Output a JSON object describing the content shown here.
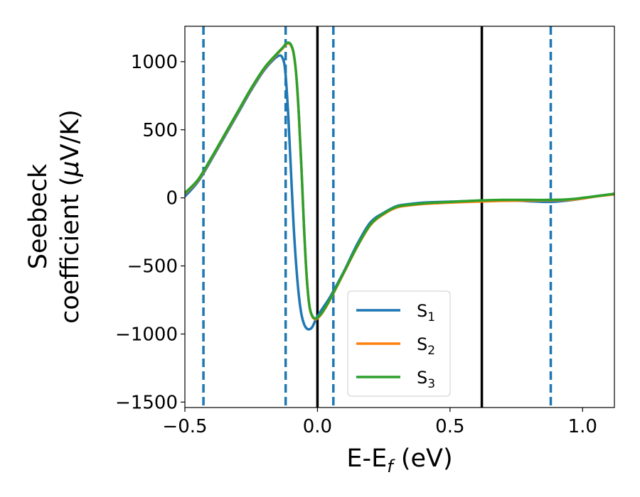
{
  "chart_data": {
    "type": "line",
    "xlabel": {
      "main": "E-E",
      "sub": "f",
      "unit": " (eV)"
    },
    "ylabel": {
      "line1": "Seebeck",
      "line2": "coefficient  (",
      "mu": "μ",
      "unit": "V/K)"
    },
    "xlim": [
      -0.5,
      1.12
    ],
    "ylim": [
      -1540,
      1260
    ],
    "xticks": [
      -0.5,
      0.0,
      0.5,
      1.0
    ],
    "xtick_labels": [
      "−0.5",
      "0.0",
      "0.5",
      "1.0"
    ],
    "yticks": [
      -1500,
      -1000,
      -500,
      0,
      500,
      1000
    ],
    "ytick_labels": [
      "−1500",
      "−1000",
      "−500",
      "0",
      "500",
      "1000"
    ],
    "grid": false,
    "legend_position": "lower-center",
    "vlines_dashed": [
      -0.43,
      -0.12,
      0.06,
      0.88
    ],
    "vlines_solid": [
      0.0,
      0.62
    ],
    "series": [
      {
        "name": "S",
        "sub": "1",
        "color": "#1f77b4",
        "x": [
          -0.5,
          -0.45,
          -0.4,
          -0.35,
          -0.3,
          -0.25,
          -0.2,
          -0.15,
          -0.13,
          -0.12,
          -0.11,
          -0.1,
          -0.09,
          -0.08,
          -0.07,
          -0.06,
          -0.05,
          -0.04,
          -0.03,
          -0.02,
          -0.01,
          0.0,
          0.02,
          0.05,
          0.1,
          0.15,
          0.2,
          0.25,
          0.3,
          0.35,
          0.4,
          0.5,
          0.6,
          0.7,
          0.8,
          0.88,
          0.95,
          1.0,
          1.05,
          1.12
        ],
        "values": [
          10,
          120,
          280,
          450,
          620,
          790,
          940,
          1040,
          1020,
          900,
          600,
          200,
          -200,
          -500,
          -720,
          -860,
          -930,
          -960,
          -965,
          -950,
          -910,
          -870,
          -810,
          -720,
          -540,
          -340,
          -180,
          -110,
          -60,
          -45,
          -35,
          -28,
          -22,
          -18,
          -25,
          -30,
          -18,
          -5,
          12,
          28
        ]
      },
      {
        "name": "S",
        "sub": "2",
        "color": "#ff7f0e",
        "x": [
          -0.5,
          -0.45,
          -0.4,
          -0.35,
          -0.3,
          -0.25,
          -0.2,
          -0.15,
          -0.13,
          -0.12,
          -0.11,
          -0.1,
          -0.09,
          -0.08,
          -0.07,
          -0.06,
          -0.05,
          -0.04,
          -0.03,
          -0.02,
          -0.01,
          0.0,
          0.02,
          0.05,
          0.1,
          0.15,
          0.2,
          0.25,
          0.3,
          0.35,
          0.4,
          0.5,
          0.6,
          0.7,
          0.8,
          0.88,
          0.95,
          1.0,
          1.05,
          1.12
        ],
        "values": [
          30,
          130,
          290,
          460,
          630,
          800,
          950,
          1060,
          1100,
          1125,
          1135,
          1120,
          1060,
          900,
          600,
          200,
          -250,
          -600,
          -800,
          -870,
          -890,
          -885,
          -840,
          -740,
          -550,
          -360,
          -200,
          -120,
          -70,
          -55,
          -45,
          -35,
          -28,
          -22,
          -20,
          -18,
          -15,
          -5,
          10,
          25
        ]
      },
      {
        "name": "S",
        "sub": "3",
        "color": "#2ca02c",
        "x": [
          -0.5,
          -0.45,
          -0.4,
          -0.35,
          -0.3,
          -0.25,
          -0.2,
          -0.15,
          -0.13,
          -0.12,
          -0.11,
          -0.1,
          -0.09,
          -0.08,
          -0.07,
          -0.06,
          -0.05,
          -0.04,
          -0.03,
          -0.02,
          -0.01,
          0.0,
          0.02,
          0.05,
          0.1,
          0.15,
          0.2,
          0.25,
          0.3,
          0.35,
          0.4,
          0.5,
          0.6,
          0.7,
          0.8,
          0.88,
          0.95,
          1.0,
          1.05,
          1.12
        ],
        "values": [
          35,
          135,
          295,
          465,
          635,
          805,
          955,
          1065,
          1105,
          1130,
          1140,
          1125,
          1065,
          905,
          605,
          205,
          -245,
          -595,
          -795,
          -865,
          -885,
          -880,
          -835,
          -735,
          -545,
          -355,
          -195,
          -115,
          -65,
          -50,
          -40,
          -30,
          -20,
          -15,
          -15,
          -15,
          -10,
          0,
          12,
          30
        ]
      }
    ]
  }
}
